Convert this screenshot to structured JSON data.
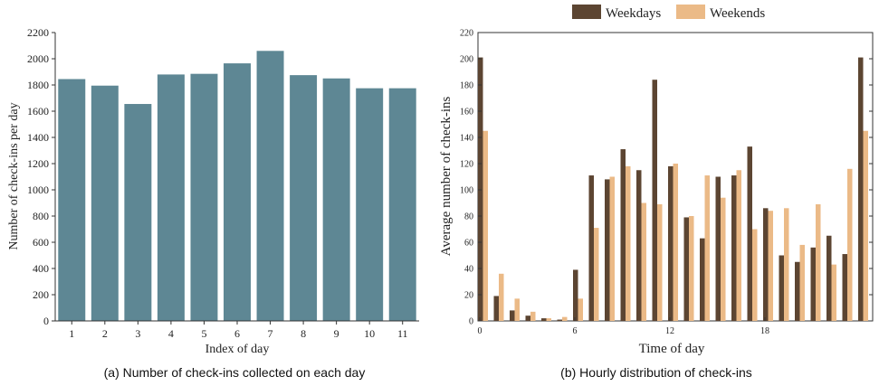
{
  "chart_data": [
    {
      "type": "bar",
      "caption": "(a) Number of check-ins collected on each day",
      "xlabel": "Index of day",
      "ylabel": "Number of check-ins per day",
      "categories": [
        "1",
        "2",
        "3",
        "4",
        "5",
        "6",
        "7",
        "8",
        "9",
        "10",
        "11"
      ],
      "values": [
        1845,
        1795,
        1655,
        1880,
        1885,
        1965,
        2060,
        1875,
        1850,
        1775,
        1775
      ],
      "ylim": [
        0,
        2200
      ],
      "yticks": [
        "0",
        "200",
        "400",
        "600",
        "800",
        "1000",
        "1200",
        "1400",
        "1600",
        "1800",
        "2000",
        "2200"
      ],
      "bar_color": "#5e8794",
      "grid": false
    },
    {
      "type": "bar",
      "caption": "(b) Hourly distribution of check-ins",
      "xlabel": "Time of day",
      "ylabel": "Average number of check-ins",
      "x": [
        0,
        1,
        2,
        3,
        4,
        5,
        6,
        7,
        8,
        9,
        10,
        11,
        12,
        13,
        14,
        15,
        16,
        17,
        18,
        19,
        20,
        21,
        22,
        23,
        24
      ],
      "xticks": [
        "0",
        "6",
        "12",
        "18"
      ],
      "ylim": [
        0,
        220
      ],
      "yticks": [
        "0",
        "20",
        "40",
        "60",
        "80",
        "100",
        "120",
        "140",
        "160",
        "180",
        "200",
        "220"
      ],
      "legend_position": "top",
      "grid": false,
      "series": [
        {
          "name": "Weekdays",
          "color": "#5c4532",
          "values": [
            201,
            19,
            8,
            4,
            2,
            1,
            39,
            111,
            108,
            131,
            115,
            184,
            118,
            79,
            63,
            110,
            111,
            133,
            86,
            50,
            45,
            56,
            65,
            51,
            201
          ]
        },
        {
          "name": "Weekends",
          "color": "#ebba87",
          "values": [
            145,
            36,
            17,
            7,
            2,
            3,
            17,
            71,
            110,
            118,
            90,
            89,
            120,
            80,
            111,
            94,
            115,
            70,
            84,
            86,
            58,
            89,
            43,
            116,
            145
          ]
        }
      ]
    }
  ]
}
